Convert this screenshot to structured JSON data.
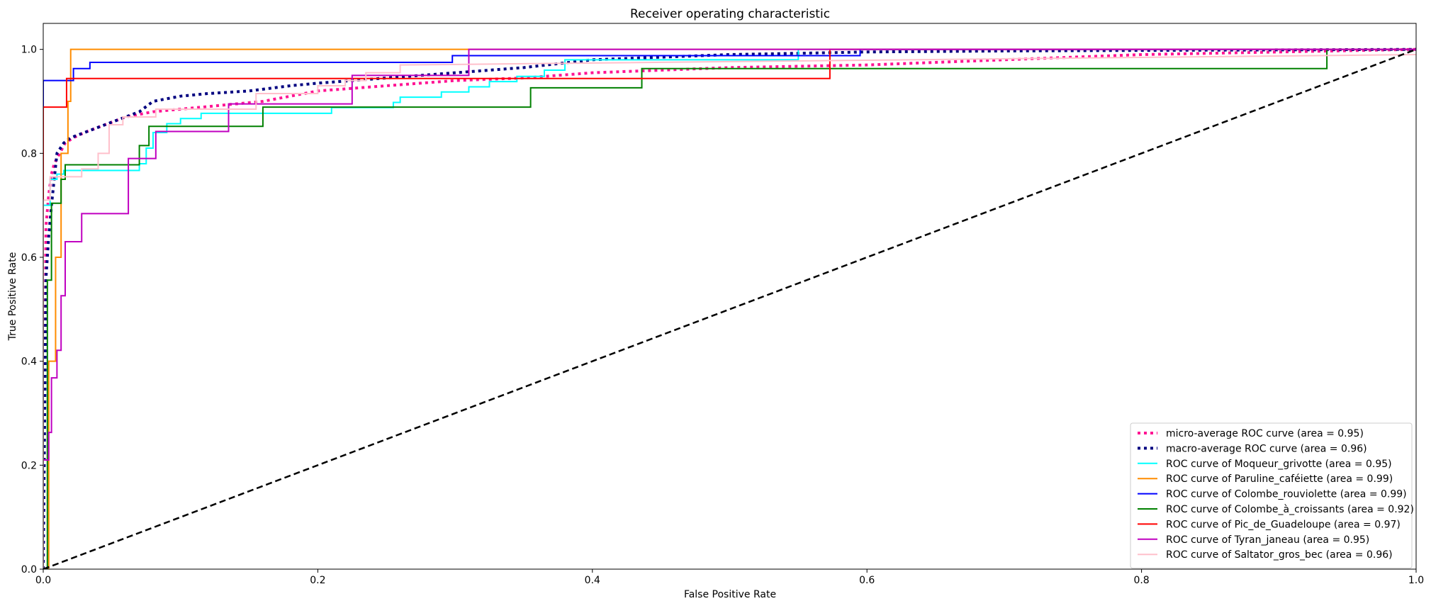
{
  "chart_data": {
    "type": "line",
    "title": "Receiver operating characteristic",
    "xlabel": "False Positive Rate",
    "ylabel": "True Positive Rate",
    "xlim": [
      0.0,
      1.0
    ],
    "ylim": [
      0.0,
      1.05
    ],
    "xticks": [
      0.0,
      0.2,
      0.4,
      0.6,
      0.8,
      1.0
    ],
    "yticks": [
      0.0,
      0.2,
      0.4,
      0.6,
      0.8,
      1.0
    ],
    "xtick_labels": [
      "0.0",
      "0.2",
      "0.4",
      "0.6",
      "0.8",
      "1.0"
    ],
    "ytick_labels": [
      "0.0",
      "0.2",
      "0.4",
      "0.6",
      "0.8",
      "1.0"
    ],
    "grid": false,
    "legend_position": "bottom-right",
    "series": [
      {
        "name": "micro-average ROC curve (area = 0.95)",
        "color": "#ff1493",
        "style": "dotted",
        "width": 4,
        "x": [
          0.0,
          0.002,
          0.004,
          0.006,
          0.008,
          0.012,
          0.016,
          0.022,
          0.03,
          0.04,
          0.05,
          0.06,
          0.07,
          0.08,
          0.1,
          0.12,
          0.14,
          0.16,
          0.18,
          0.2,
          0.25,
          0.3,
          0.35,
          0.4,
          0.45,
          0.5,
          0.6,
          0.7,
          0.8,
          0.9,
          1.0
        ],
        "y": [
          0.0,
          0.66,
          0.72,
          0.76,
          0.78,
          0.8,
          0.82,
          0.83,
          0.84,
          0.85,
          0.86,
          0.87,
          0.875,
          0.88,
          0.885,
          0.89,
          0.895,
          0.9,
          0.91,
          0.92,
          0.93,
          0.94,
          0.945,
          0.955,
          0.96,
          0.965,
          0.97,
          0.98,
          0.99,
          0.995,
          1.0
        ]
      },
      {
        "name": "macro-average ROC curve (area = 0.96)",
        "color": "#000080",
        "style": "dotted",
        "width": 4,
        "x": [
          0.0,
          0.002,
          0.004,
          0.006,
          0.01,
          0.015,
          0.02,
          0.03,
          0.04,
          0.05,
          0.06,
          0.07,
          0.08,
          0.09,
          0.1,
          0.12,
          0.15,
          0.18,
          0.2,
          0.25,
          0.3,
          0.35,
          0.4,
          0.5,
          0.6,
          0.7,
          0.8,
          0.9,
          1.0
        ],
        "y": [
          0.0,
          0.56,
          0.64,
          0.7,
          0.8,
          0.82,
          0.83,
          0.84,
          0.85,
          0.86,
          0.87,
          0.88,
          0.9,
          0.905,
          0.91,
          0.915,
          0.92,
          0.93,
          0.935,
          0.945,
          0.955,
          0.965,
          0.98,
          0.99,
          0.995,
          0.997,
          0.998,
          0.999,
          1.0
        ]
      },
      {
        "name": "ROC curve of Moqueur_grivotte (area = 0.95)",
        "color": "#00ffff",
        "style": "solid",
        "width": 2,
        "x": [
          0.0,
          0.0,
          0.005,
          0.005,
          0.01,
          0.01,
          0.015,
          0.015,
          0.07,
          0.07,
          0.075,
          0.075,
          0.08,
          0.08,
          0.09,
          0.09,
          0.1,
          0.1,
          0.115,
          0.115,
          0.21,
          0.21,
          0.255,
          0.255,
          0.26,
          0.26,
          0.29,
          0.29,
          0.31,
          0.31,
          0.325,
          0.325,
          0.345,
          0.345,
          0.365,
          0.365,
          0.38,
          0.38,
          0.55,
          0.55,
          1.0
        ],
        "y": [
          0.0,
          0.7,
          0.7,
          0.75,
          0.75,
          0.76,
          0.76,
          0.767,
          0.767,
          0.78,
          0.78,
          0.81,
          0.81,
          0.84,
          0.84,
          0.857,
          0.857,
          0.867,
          0.867,
          0.877,
          0.877,
          0.888,
          0.888,
          0.898,
          0.898,
          0.908,
          0.908,
          0.918,
          0.918,
          0.928,
          0.928,
          0.938,
          0.938,
          0.948,
          0.948,
          0.96,
          0.96,
          0.98,
          0.98,
          1.0,
          1.0
        ]
      },
      {
        "name": "ROC curve of Paruline_caféiette (area = 0.99)",
        "color": "#ff8c00",
        "style": "solid",
        "width": 2,
        "x": [
          0.0,
          0.004,
          0.004,
          0.009,
          0.009,
          0.013,
          0.013,
          0.018,
          0.018,
          0.02,
          0.02,
          1.0
        ],
        "y": [
          0.0,
          0.0,
          0.4,
          0.4,
          0.6,
          0.6,
          0.8,
          0.8,
          0.9,
          0.9,
          1.0,
          1.0
        ]
      },
      {
        "name": "ROC curve of Colombe_rouviolette (area = 0.99)",
        "color": "#0000ff",
        "style": "solid",
        "width": 2,
        "x": [
          0.0,
          0.0,
          0.022,
          0.022,
          0.034,
          0.034,
          0.298,
          0.298,
          0.31,
          0.31,
          0.595,
          0.595,
          1.0
        ],
        "y": [
          0.0,
          0.94,
          0.94,
          0.963,
          0.963,
          0.975,
          0.975,
          0.988,
          0.988,
          0.988,
          0.988,
          1.0,
          1.0
        ]
      },
      {
        "name": "ROC curve of Colombe_à_croissants (area = 0.92)",
        "color": "#008000",
        "style": "solid",
        "width": 2,
        "x": [
          0.0,
          0.003,
          0.003,
          0.006,
          0.006,
          0.013,
          0.013,
          0.016,
          0.016,
          0.07,
          0.07,
          0.077,
          0.077,
          0.16,
          0.16,
          0.355,
          0.355,
          0.436,
          0.436,
          0.44,
          0.44,
          0.935,
          0.935,
          1.0
        ],
        "y": [
          0.0,
          0.0,
          0.556,
          0.556,
          0.704,
          0.704,
          0.75,
          0.75,
          0.778,
          0.778,
          0.815,
          0.815,
          0.852,
          0.852,
          0.889,
          0.889,
          0.926,
          0.926,
          0.963,
          0.963,
          0.963,
          0.963,
          1.0,
          1.0
        ]
      },
      {
        "name": "ROC curve of Pic_de_Guadeloupe (area = 0.97)",
        "color": "#ff0000",
        "style": "solid",
        "width": 2,
        "x": [
          0.0,
          0.0,
          0.017,
          0.017,
          0.573,
          0.573,
          1.0
        ],
        "y": [
          0.0,
          0.889,
          0.889,
          0.944,
          0.944,
          1.0,
          1.0
        ]
      },
      {
        "name": "ROC curve of Tyran_janeau (area = 0.95)",
        "color": "#c000c0",
        "style": "solid",
        "width": 2,
        "x": [
          0.0,
          0.0,
          0.004,
          0.004,
          0.006,
          0.006,
          0.01,
          0.01,
          0.013,
          0.013,
          0.016,
          0.016,
          0.019,
          0.019,
          0.028,
          0.028,
          0.062,
          0.062,
          0.082,
          0.082,
          0.135,
          0.135,
          0.225,
          0.225,
          0.31,
          0.31,
          1.0
        ],
        "y": [
          0.0,
          0.21,
          0.21,
          0.263,
          0.263,
          0.368,
          0.368,
          0.421,
          0.421,
          0.526,
          0.526,
          0.63,
          0.63,
          0.63,
          0.63,
          0.684,
          0.684,
          0.79,
          0.79,
          0.842,
          0.842,
          0.895,
          0.895,
          0.95,
          0.95,
          1.0,
          1.0
        ]
      },
      {
        "name": "ROC curve of Saltator_gros_bec (area = 0.96)",
        "color": "#ffc0cb",
        "style": "solid",
        "width": 2,
        "x": [
          0.0,
          0.0,
          0.005,
          0.005,
          0.028,
          0.028,
          0.04,
          0.04,
          0.048,
          0.048,
          0.058,
          0.058,
          0.082,
          0.082,
          0.155,
          0.155,
          0.2,
          0.2,
          0.22,
          0.22,
          0.235,
          0.235,
          0.26,
          0.26,
          1.0
        ],
        "y": [
          0.0,
          0.71,
          0.71,
          0.755,
          0.755,
          0.77,
          0.77,
          0.8,
          0.8,
          0.855,
          0.855,
          0.87,
          0.87,
          0.885,
          0.885,
          0.915,
          0.915,
          0.93,
          0.93,
          0.94,
          0.94,
          0.955,
          0.955,
          0.97,
          0.99
        ]
      },
      {
        "name": "",
        "color": "#000000",
        "style": "dashed",
        "width": 2.5,
        "x": [
          0.0,
          1.0
        ],
        "y": [
          0.0,
          1.0
        ]
      }
    ]
  }
}
